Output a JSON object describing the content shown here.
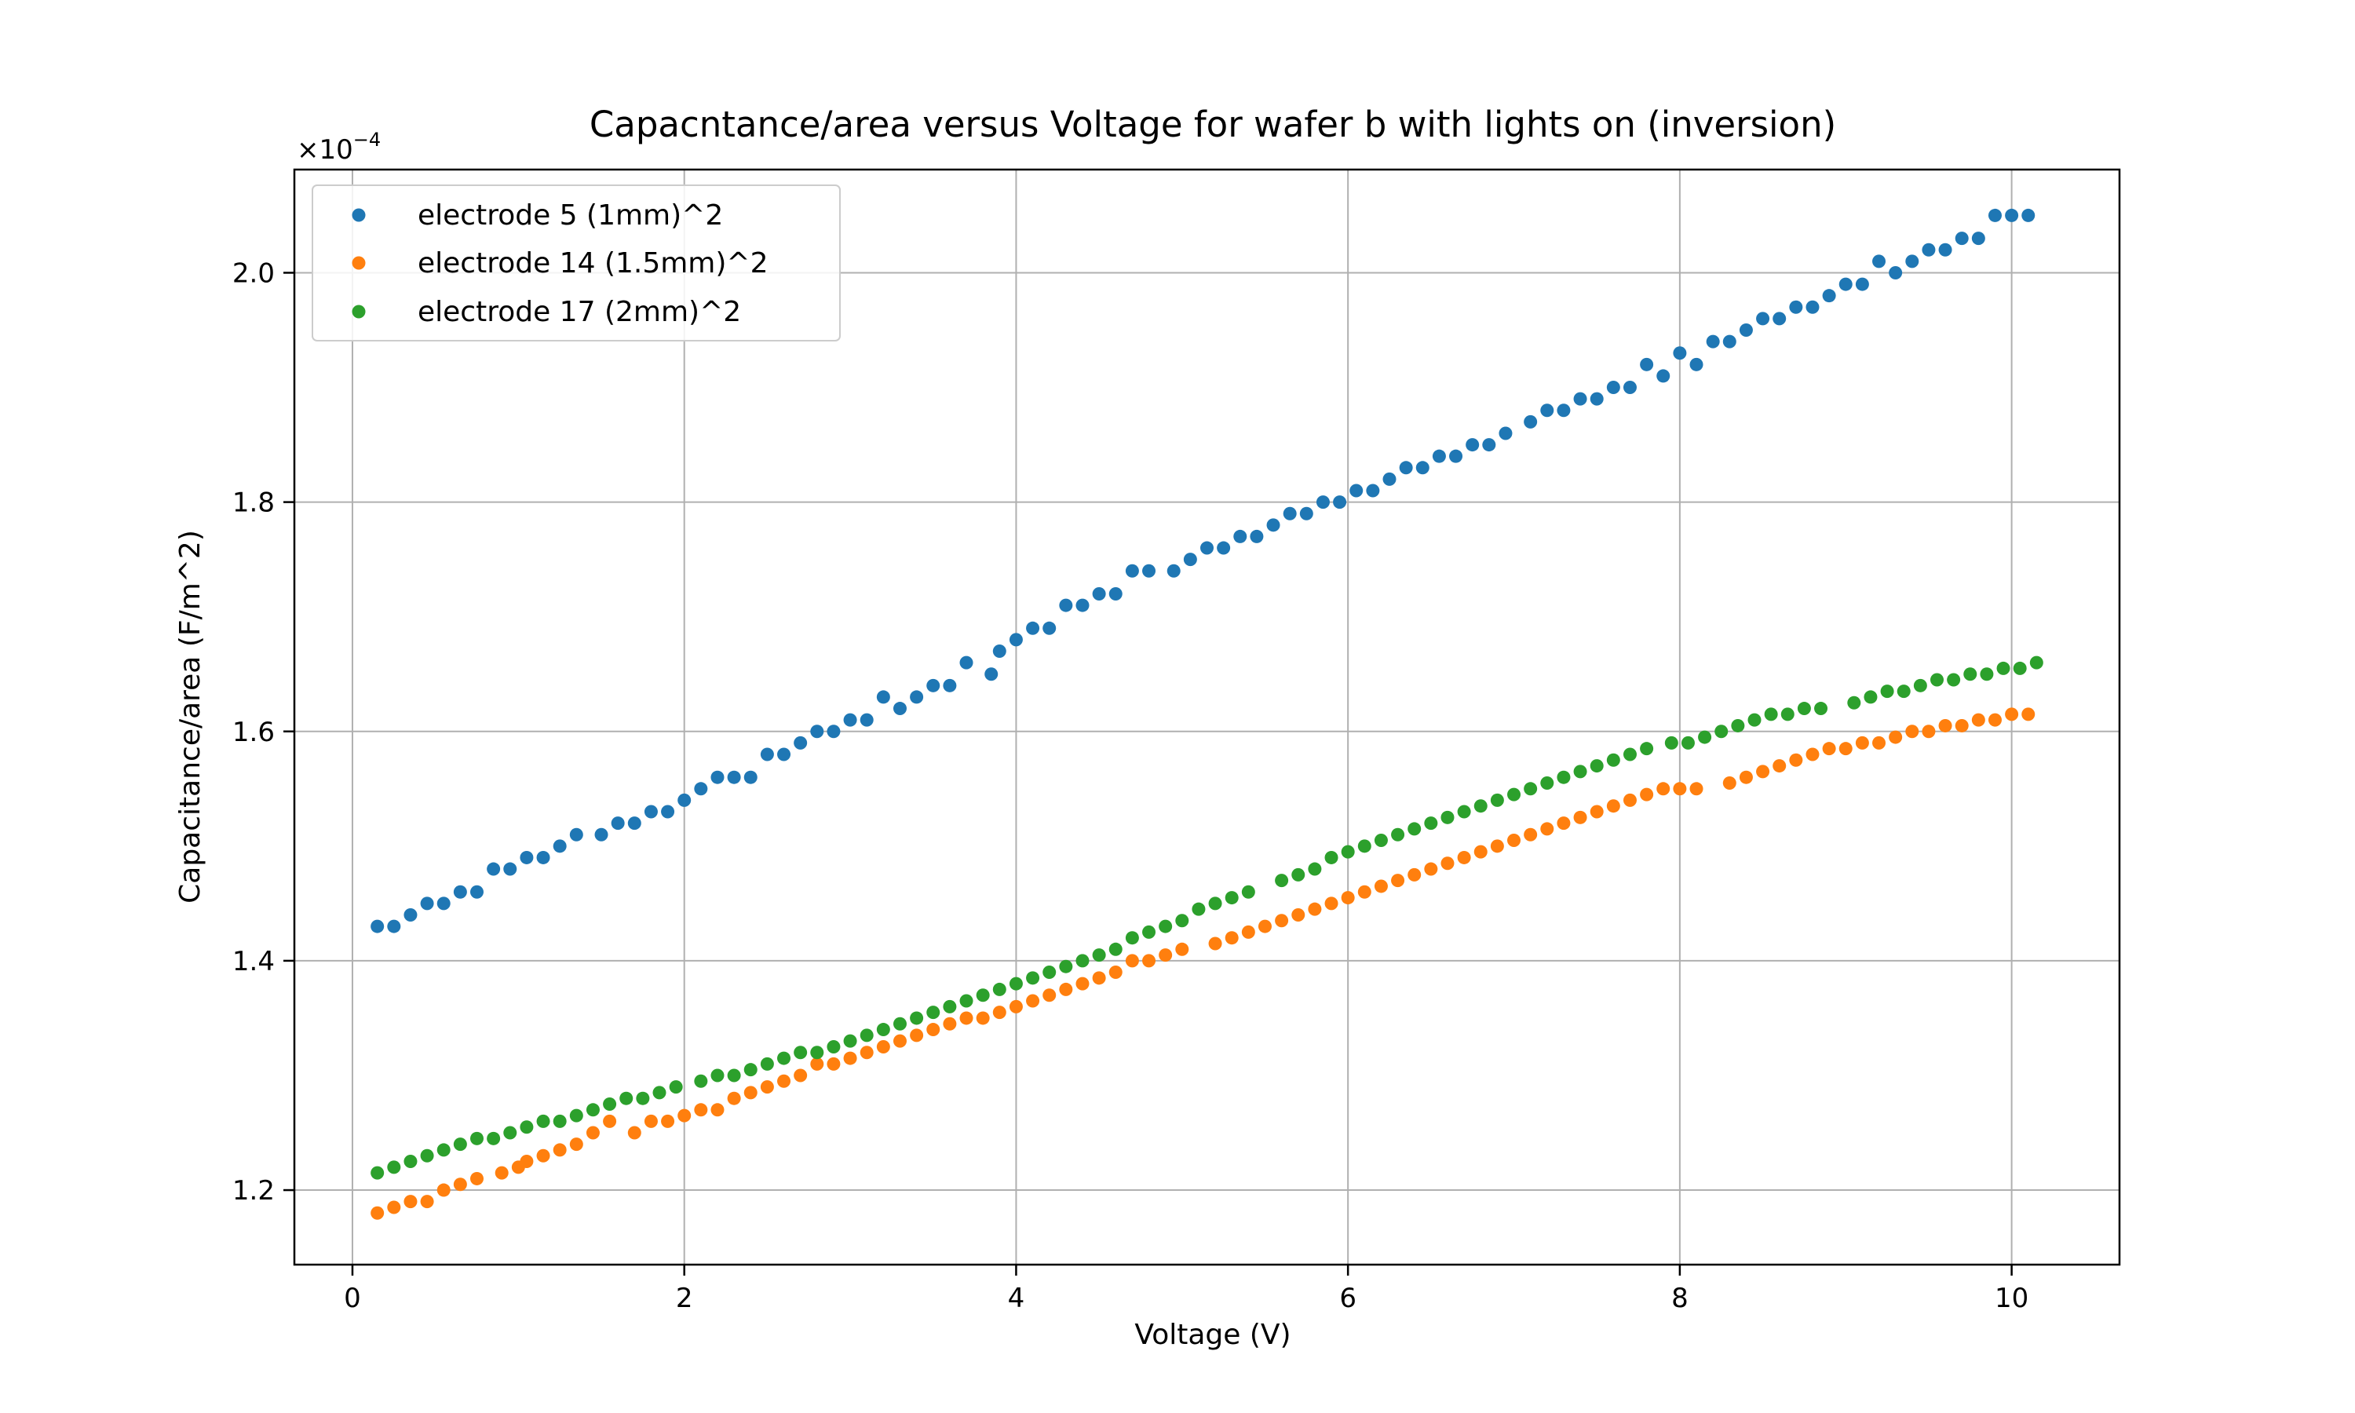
{
  "chart_data": {
    "type": "scatter",
    "title": "Capacntance/area versus Voltage for wafer b with lights on (inversion)",
    "xlabel": "Voltage (V)",
    "ylabel": "Capacitance/area (F/m^2)",
    "y_offset_label": "×10",
    "y_offset_exponent": "−4",
    "xlim": [
      -0.35,
      10.65
    ],
    "ylim": [
      1.135,
      2.09
    ],
    "x_ticks": [
      0,
      2,
      4,
      6,
      8,
      10
    ],
    "x_tick_labels": [
      "0",
      "2",
      "4",
      "6",
      "8",
      "10"
    ],
    "y_ticks": [
      1.2,
      1.4,
      1.6,
      1.8,
      2.0
    ],
    "y_tick_labels": [
      "1.2",
      "1.4",
      "1.6",
      "1.8",
      "2.0"
    ],
    "grid": true,
    "legend_position": "top-left",
    "series": [
      {
        "name": "electrode 5 (1mm)^2",
        "color": "#1f77b4",
        "x": [
          0.15,
          0.25,
          0.35,
          0.45,
          0.55,
          0.65,
          0.75,
          0.85,
          0.95,
          1.05,
          1.15,
          1.25,
          1.35,
          1.5,
          1.6,
          1.7,
          1.8,
          1.9,
          2.0,
          2.1,
          2.2,
          2.3,
          2.4,
          2.5,
          2.6,
          2.7,
          2.8,
          2.9,
          3.0,
          3.1,
          3.2,
          3.3,
          3.4,
          3.5,
          3.6,
          3.7,
          3.85,
          3.9,
          4.0,
          4.1,
          4.2,
          4.3,
          4.4,
          4.5,
          4.6,
          4.7,
          4.8,
          4.95,
          5.05,
          5.15,
          5.25,
          5.35,
          5.45,
          5.55,
          5.65,
          5.75,
          5.85,
          5.95,
          6.05,
          6.15,
          6.25,
          6.35,
          6.45,
          6.55,
          6.65,
          6.75,
          6.85,
          6.95,
          7.1,
          7.2,
          7.3,
          7.4,
          7.5,
          7.6,
          7.7,
          7.8,
          7.9,
          8.0,
          8.1,
          8.2,
          8.3,
          8.4,
          8.5,
          8.6,
          8.7,
          8.8,
          8.9,
          9.0,
          9.1,
          9.2,
          9.3,
          9.4,
          9.5,
          9.6,
          9.7,
          9.8,
          9.9,
          10.0,
          10.1
        ],
        "y": [
          1.43,
          1.43,
          1.44,
          1.45,
          1.45,
          1.46,
          1.46,
          1.48,
          1.48,
          1.49,
          1.49,
          1.5,
          1.51,
          1.51,
          1.52,
          1.52,
          1.53,
          1.53,
          1.54,
          1.55,
          1.56,
          1.56,
          1.56,
          1.58,
          1.58,
          1.59,
          1.6,
          1.6,
          1.61,
          1.61,
          1.63,
          1.62,
          1.63,
          1.64,
          1.64,
          1.66,
          1.65,
          1.67,
          1.68,
          1.69,
          1.69,
          1.71,
          1.71,
          1.72,
          1.72,
          1.74,
          1.74,
          1.74,
          1.75,
          1.76,
          1.76,
          1.77,
          1.77,
          1.78,
          1.79,
          1.79,
          1.8,
          1.8,
          1.81,
          1.81,
          1.82,
          1.83,
          1.83,
          1.84,
          1.84,
          1.85,
          1.85,
          1.86,
          1.87,
          1.88,
          1.88,
          1.89,
          1.89,
          1.9,
          1.9,
          1.92,
          1.91,
          1.93,
          1.92,
          1.94,
          1.94,
          1.95,
          1.96,
          1.96,
          1.97,
          1.97,
          1.98,
          1.99,
          1.99,
          2.01,
          2.0,
          2.01,
          2.02,
          2.02,
          2.03,
          2.03,
          2.05,
          2.05,
          2.05
        ]
      },
      {
        "name": "electrode 14 (1.5mm)^2",
        "color": "#ff7f0e",
        "x": [
          0.15,
          0.25,
          0.35,
          0.45,
          0.55,
          0.65,
          0.75,
          0.9,
          1.0,
          1.05,
          1.15,
          1.25,
          1.35,
          1.45,
          1.55,
          1.7,
          1.8,
          1.9,
          2.0,
          2.1,
          2.2,
          2.3,
          2.4,
          2.5,
          2.6,
          2.7,
          2.8,
          2.9,
          3.0,
          3.1,
          3.2,
          3.3,
          3.4,
          3.5,
          3.6,
          3.7,
          3.8,
          3.9,
          4.0,
          4.1,
          4.2,
          4.3,
          4.4,
          4.5,
          4.6,
          4.7,
          4.8,
          4.9,
          5.0,
          5.2,
          5.3,
          5.4,
          5.5,
          5.6,
          5.7,
          5.8,
          5.9,
          6.0,
          6.1,
          6.2,
          6.3,
          6.4,
          6.5,
          6.6,
          6.7,
          6.8,
          6.9,
          7.0,
          7.1,
          7.2,
          7.3,
          7.4,
          7.5,
          7.6,
          7.7,
          7.8,
          7.9,
          8.0,
          8.1,
          8.3,
          8.4,
          8.5,
          8.6,
          8.7,
          8.8,
          8.9,
          9.0,
          9.1,
          9.2,
          9.3,
          9.4,
          9.5,
          9.6,
          9.7,
          9.8,
          9.9,
          10.0,
          10.1
        ],
        "y": [
          1.18,
          1.185,
          1.19,
          1.19,
          1.2,
          1.205,
          1.21,
          1.215,
          1.22,
          1.225,
          1.23,
          1.235,
          1.24,
          1.25,
          1.26,
          1.25,
          1.26,
          1.26,
          1.265,
          1.27,
          1.27,
          1.28,
          1.285,
          1.29,
          1.295,
          1.3,
          1.31,
          1.31,
          1.315,
          1.32,
          1.325,
          1.33,
          1.335,
          1.34,
          1.345,
          1.35,
          1.35,
          1.355,
          1.36,
          1.365,
          1.37,
          1.375,
          1.38,
          1.385,
          1.39,
          1.4,
          1.4,
          1.405,
          1.41,
          1.415,
          1.42,
          1.425,
          1.43,
          1.435,
          1.44,
          1.445,
          1.45,
          1.455,
          1.46,
          1.465,
          1.47,
          1.475,
          1.48,
          1.485,
          1.49,
          1.495,
          1.5,
          1.505,
          1.51,
          1.515,
          1.52,
          1.525,
          1.53,
          1.535,
          1.54,
          1.545,
          1.55,
          1.55,
          1.55,
          1.555,
          1.56,
          1.565,
          1.57,
          1.575,
          1.58,
          1.585,
          1.585,
          1.59,
          1.59,
          1.595,
          1.6,
          1.6,
          1.605,
          1.605,
          1.61,
          1.61,
          1.615,
          1.615
        ]
      },
      {
        "name": "electrode 17 (2mm)^2",
        "color": "#2ca02c",
        "x": [
          0.15,
          0.25,
          0.35,
          0.45,
          0.55,
          0.65,
          0.75,
          0.85,
          0.95,
          1.05,
          1.15,
          1.25,
          1.35,
          1.45,
          1.55,
          1.65,
          1.75,
          1.85,
          1.95,
          2.1,
          2.2,
          2.3,
          2.4,
          2.5,
          2.6,
          2.7,
          2.8,
          2.9,
          3.0,
          3.1,
          3.2,
          3.3,
          3.4,
          3.5,
          3.6,
          3.7,
          3.8,
          3.9,
          4.0,
          4.1,
          4.2,
          4.3,
          4.4,
          4.5,
          4.6,
          4.7,
          4.8,
          4.9,
          5.0,
          5.1,
          5.2,
          5.3,
          5.4,
          5.6,
          5.7,
          5.8,
          5.9,
          6.0,
          6.1,
          6.2,
          6.3,
          6.4,
          6.5,
          6.6,
          6.7,
          6.8,
          6.9,
          7.0,
          7.1,
          7.2,
          7.3,
          7.4,
          7.5,
          7.6,
          7.7,
          7.8,
          7.95,
          8.05,
          8.15,
          8.25,
          8.35,
          8.45,
          8.55,
          8.65,
          8.75,
          8.85,
          9.05,
          9.15,
          9.25,
          9.35,
          9.45,
          9.55,
          9.65,
          9.75,
          9.85,
          9.95,
          10.05,
          10.15
        ],
        "y": [
          1.215,
          1.22,
          1.225,
          1.23,
          1.235,
          1.24,
          1.245,
          1.245,
          1.25,
          1.255,
          1.26,
          1.26,
          1.265,
          1.27,
          1.275,
          1.28,
          1.28,
          1.285,
          1.29,
          1.295,
          1.3,
          1.3,
          1.305,
          1.31,
          1.315,
          1.32,
          1.32,
          1.325,
          1.33,
          1.335,
          1.34,
          1.345,
          1.35,
          1.355,
          1.36,
          1.365,
          1.37,
          1.375,
          1.38,
          1.385,
          1.39,
          1.395,
          1.4,
          1.405,
          1.41,
          1.42,
          1.425,
          1.43,
          1.435,
          1.445,
          1.45,
          1.455,
          1.46,
          1.47,
          1.475,
          1.48,
          1.49,
          1.495,
          1.5,
          1.505,
          1.51,
          1.515,
          1.52,
          1.525,
          1.53,
          1.535,
          1.54,
          1.545,
          1.55,
          1.555,
          1.56,
          1.565,
          1.57,
          1.575,
          1.58,
          1.585,
          1.59,
          1.59,
          1.595,
          1.6,
          1.605,
          1.61,
          1.615,
          1.615,
          1.62,
          1.62,
          1.625,
          1.63,
          1.635,
          1.635,
          1.64,
          1.645,
          1.645,
          1.65,
          1.65,
          1.655,
          1.655,
          1.66
        ]
      }
    ]
  }
}
